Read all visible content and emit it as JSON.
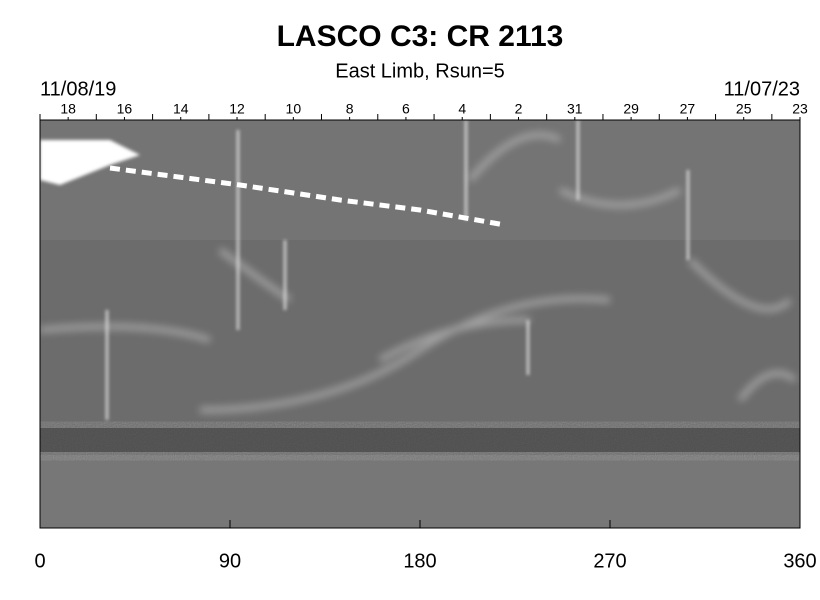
{
  "chart_data": {
    "type": "synoptic-map",
    "title": "LASCO C3: CR 2113",
    "subtitle": "East Limb, Rsun=5",
    "start_date": "11/08/19",
    "end_date": "11/07/23",
    "xlim": [
      0,
      360
    ],
    "xticks": [
      0,
      90,
      180,
      270,
      360
    ],
    "x2lim": [
      0,
      27
    ],
    "x2ticks": [
      {
        "value": 1,
        "label": "18"
      },
      {
        "value": 3,
        "label": "16"
      },
      {
        "value": 5,
        "label": "14"
      },
      {
        "value": 7,
        "label": "12"
      },
      {
        "value": 9,
        "label": "10"
      },
      {
        "value": 11,
        "label": "8"
      },
      {
        "value": 13,
        "label": "6"
      },
      {
        "value": 15,
        "label": "4"
      },
      {
        "value": 17,
        "label": "2"
      },
      {
        "value": 19,
        "label": "31"
      },
      {
        "value": 21,
        "label": "29"
      },
      {
        "value": 23,
        "label": "27"
      },
      {
        "value": 25,
        "label": "25"
      },
      {
        "value": 27,
        "label": "23"
      }
    ],
    "x2minorticks": [
      0,
      2,
      4,
      6,
      8,
      10,
      12,
      14,
      16,
      18,
      20,
      22,
      24,
      26
    ]
  }
}
